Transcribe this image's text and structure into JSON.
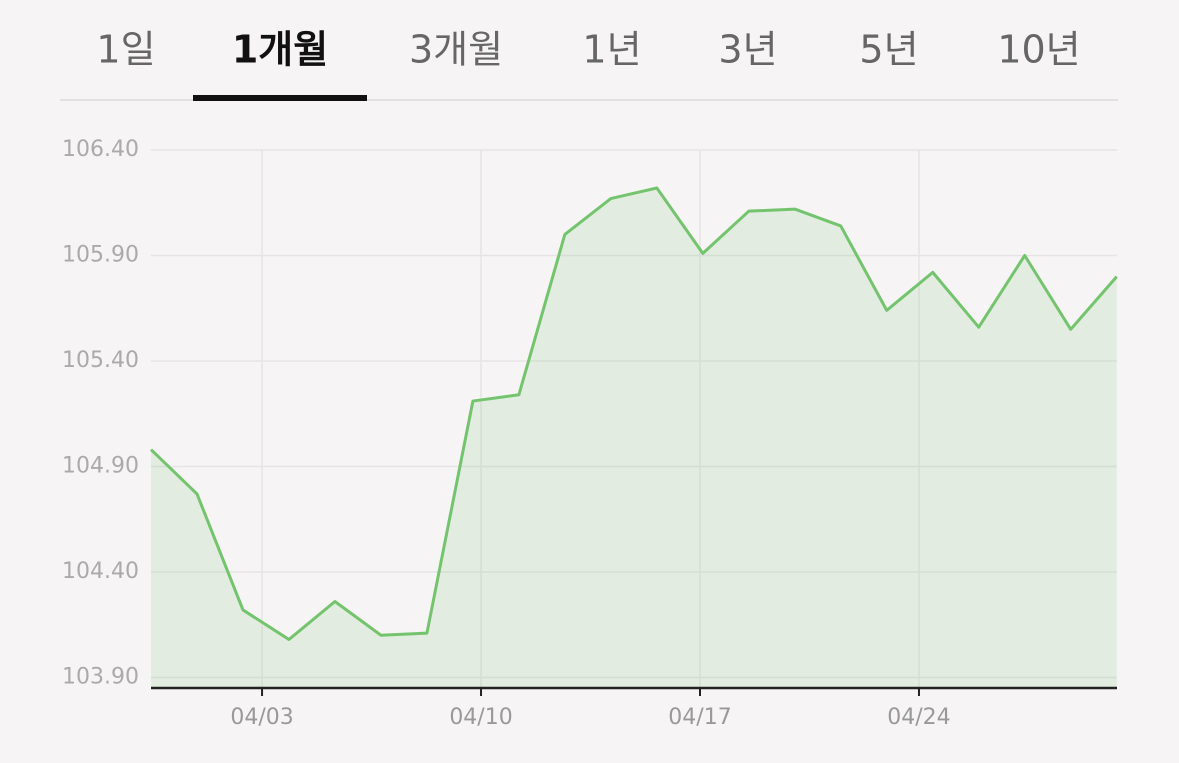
{
  "tabs": [
    "1일",
    "1개월",
    "3개월",
    "1년",
    "3년",
    "5년",
    "10년"
  ],
  "selected_tab": 1,
  "chart_data": {
    "type": "area",
    "x": [
      -0.55,
      0.92,
      2.39,
      3.86,
      5.33,
      6.8,
      8.27,
      9.74,
      11.21,
      12.68,
      14.15,
      15.62,
      17.09,
      18.56,
      20.03,
      21.5,
      22.97,
      24.44,
      25.91,
      27.38,
      28.85,
      30.32
    ],
    "series": [
      {
        "color": "#74c46e",
        "values": [
          104.98,
          104.77,
          104.22,
          104.08,
          104.26,
          104.1,
          104.11,
          105.21,
          105.24,
          106.0,
          106.17,
          106.22,
          105.91,
          106.11,
          106.12,
          106.04,
          105.64,
          105.82,
          105.56,
          105.9,
          105.55,
          105.8
        ]
      }
    ],
    "xlim": [
      -0.55,
      30.33
    ],
    "xticks": [
      {
        "value": 3,
        "label": "04/03"
      },
      {
        "value": 10,
        "label": "04/10"
      },
      {
        "value": 17,
        "label": "04/17"
      },
      {
        "value": 24,
        "label": "04/24"
      }
    ],
    "ylim": [
      103.85,
      106.4
    ],
    "yticks": [
      {
        "value": 103.9,
        "label": "103.90"
      },
      {
        "value": 104.4,
        "label": "104.40"
      },
      {
        "value": 104.9,
        "label": "104.90"
      },
      {
        "value": 105.4,
        "label": "105.40"
      },
      {
        "value": 105.9,
        "label": "105.90"
      },
      {
        "value": 106.4,
        "label": "106.40"
      }
    ],
    "grid": true
  }
}
